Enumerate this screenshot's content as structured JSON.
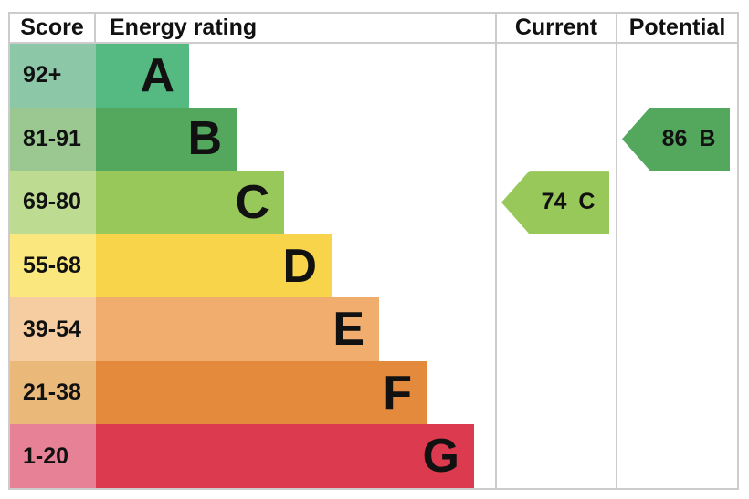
{
  "header": {
    "score": "Score",
    "rating": "Energy rating",
    "current": "Current",
    "potential": "Potential"
  },
  "colors": {
    "border": "#cccccc",
    "text": "#111111",
    "background": "#ffffff"
  },
  "chart_data": {
    "type": "bar",
    "title": "Energy rating",
    "columns": [
      "Score",
      "Energy rating",
      "Current",
      "Potential"
    ],
    "bands": [
      {
        "letter": "A",
        "score_range": "92+",
        "color": "#55ba81",
        "score_tint": "#8cc7a8"
      },
      {
        "letter": "B",
        "score_range": "81-91",
        "color": "#53a85d",
        "score_tint": "#9ac890"
      },
      {
        "letter": "C",
        "score_range": "69-80",
        "color": "#98c859",
        "score_tint": "#bedb92"
      },
      {
        "letter": "D",
        "score_range": "55-68",
        "color": "#f7d44a",
        "score_tint": "#fae77e"
      },
      {
        "letter": "E",
        "score_range": "39-54",
        "color": "#f0ad6e",
        "score_tint": "#f6cda0"
      },
      {
        "letter": "F",
        "score_range": "21-38",
        "color": "#e48a3d",
        "score_tint": "#eab97a"
      },
      {
        "letter": "G",
        "score_range": "1-20",
        "color": "#dc3a4e",
        "score_tint": "#e78296"
      }
    ],
    "current": {
      "value": 74,
      "band": "C"
    },
    "potential": {
      "value": 86,
      "band": "B"
    }
  }
}
